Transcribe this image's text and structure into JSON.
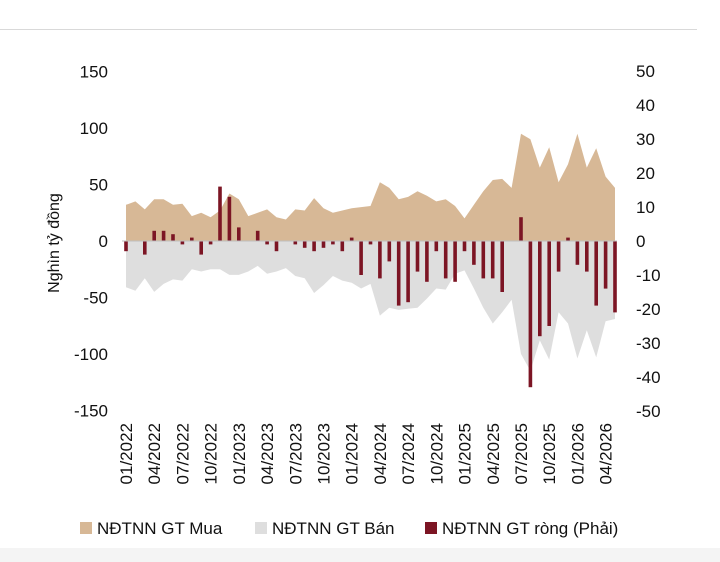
{
  "chart_data": {
    "type": "bar",
    "ylabel": "Nghìn tỷ đồng",
    "y_left_ticks": [
      "150",
      "100",
      "50",
      "0",
      "-50",
      "-100",
      "-150"
    ],
    "y_right_ticks": [
      "50",
      "40",
      "30",
      "20",
      "10",
      "0",
      "-10",
      "-20",
      "-30",
      "-40",
      "-50"
    ],
    "ylim_left": [
      -150,
      150
    ],
    "ylim_right": [
      -50,
      50
    ],
    "x_tick_labels": [
      "01/2022",
      "04/2022",
      "07/2022",
      "10/2022",
      "01/2023",
      "04/2023",
      "07/2023",
      "10/2023",
      "01/2024",
      "04/2024",
      "07/2024",
      "10/2024",
      "01/2025",
      "04/2025",
      "07/2025",
      "10/2025",
      "01/2026",
      "04/2026"
    ],
    "legend_position": "bottom",
    "series": [
      {
        "name": "NĐTNN GT Mua",
        "axis": "left",
        "kind": "area",
        "color": "#d7b896",
        "values": [
          32,
          35,
          28,
          37,
          37,
          32,
          33,
          22,
          25,
          21,
          27,
          42,
          37,
          22,
          25,
          28,
          21,
          19,
          28,
          27,
          38,
          29,
          25,
          27,
          29,
          30,
          31,
          52,
          47,
          37,
          39,
          44,
          40,
          35,
          37,
          31,
          20,
          32,
          44,
          54,
          55,
          47,
          95,
          90,
          65,
          83,
          52,
          68,
          95,
          65,
          82,
          57,
          47
        ]
      },
      {
        "name": "NĐTNN GT Bán",
        "axis": "left",
        "kind": "area",
        "color": "#dedede",
        "values": [
          -41,
          -44,
          -33,
          -45,
          -38,
          -34,
          -35,
          -25,
          -27,
          -25,
          -25,
          -30,
          -30,
          -27,
          -22,
          -29,
          -27,
          -24,
          -31,
          -33,
          -46,
          -39,
          -31,
          -35,
          -37,
          -42,
          -38,
          -66,
          -59,
          -61,
          -60,
          -59,
          -51,
          -42,
          -43,
          -29,
          -26,
          -42,
          -59,
          -73,
          -63,
          -52,
          -100,
          -115,
          -88,
          -105,
          -63,
          -73,
          -104,
          -79,
          -103,
          -71,
          -69
        ]
      },
      {
        "name": "NĐTNN GT ròng (Phải)",
        "axis": "right",
        "kind": "bar",
        "color": "#7c1524",
        "values": [
          -3,
          0,
          -4,
          3,
          3,
          2,
          -1,
          1,
          -4,
          -1,
          16,
          13,
          4,
          0,
          3,
          -1,
          -3,
          0,
          -1,
          -2,
          -3,
          -2,
          -1,
          -3,
          1,
          -10,
          -1,
          -11,
          -6,
          -19,
          -18,
          -9,
          -12,
          -3,
          -11,
          -12,
          -3,
          -7,
          -11,
          -11,
          -15,
          0,
          7,
          -43,
          -28,
          -25,
          -9,
          1,
          -7,
          -9,
          -19,
          -14,
          -21
        ]
      }
    ]
  }
}
